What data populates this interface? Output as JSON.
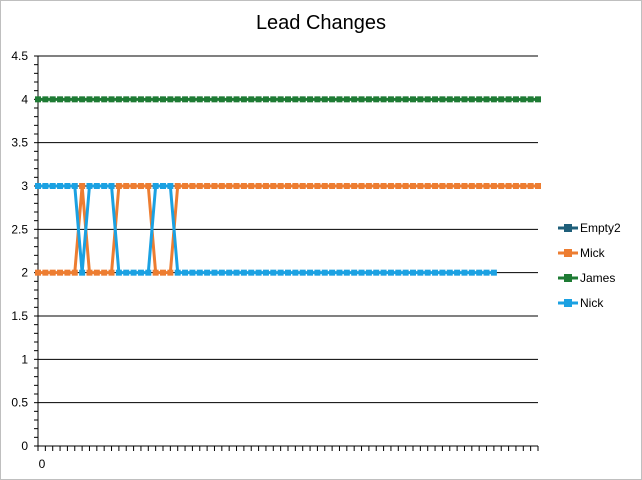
{
  "chart_data": {
    "type": "line",
    "title": "Lead Changes",
    "xlabel": "",
    "ylabel": "",
    "ylim": [
      0,
      4.5
    ],
    "yticks": [
      "0",
      "0.5",
      "1",
      "1.5",
      "2",
      "2.5",
      "3",
      "3.5",
      "4",
      "4.5"
    ],
    "xtick_labels": [
      "0"
    ],
    "x_count": 69,
    "grid": "horizontal",
    "legend_position": "right",
    "series": [
      {
        "name": "Empty2",
        "color": "#1f5f7a",
        "values": []
      },
      {
        "name": "Mick",
        "color": "#ed7d31",
        "values": [
          2,
          2,
          2,
          2,
          2,
          2,
          3,
          2,
          2,
          2,
          2,
          3,
          3,
          3,
          3,
          3,
          2,
          2,
          2,
          3,
          3,
          3,
          3,
          3,
          3,
          3,
          3,
          3,
          3,
          3,
          3,
          3,
          3,
          3,
          3,
          3,
          3,
          3,
          3,
          3,
          3,
          3,
          3,
          3,
          3,
          3,
          3,
          3,
          3,
          3,
          3,
          3,
          3,
          3,
          3,
          3,
          3,
          3,
          3,
          3,
          3,
          3,
          3,
          3,
          3,
          3,
          3,
          3,
          3
        ]
      },
      {
        "name": "James",
        "color": "#1e7b34",
        "values": [
          4,
          4,
          4,
          4,
          4,
          4,
          4,
          4,
          4,
          4,
          4,
          4,
          4,
          4,
          4,
          4,
          4,
          4,
          4,
          4,
          4,
          4,
          4,
          4,
          4,
          4,
          4,
          4,
          4,
          4,
          4,
          4,
          4,
          4,
          4,
          4,
          4,
          4,
          4,
          4,
          4,
          4,
          4,
          4,
          4,
          4,
          4,
          4,
          4,
          4,
          4,
          4,
          4,
          4,
          4,
          4,
          4,
          4,
          4,
          4,
          4,
          4,
          4,
          4,
          4,
          4,
          4,
          4,
          4
        ]
      },
      {
        "name": "Nick",
        "color": "#1ba1e2",
        "values": [
          3,
          3,
          3,
          3,
          3,
          3,
          2,
          3,
          3,
          3,
          3,
          2,
          2,
          2,
          2,
          2,
          3,
          3,
          3,
          2,
          2,
          2,
          2,
          2,
          2,
          2,
          2,
          2,
          2,
          2,
          2,
          2,
          2,
          2,
          2,
          2,
          2,
          2,
          2,
          2,
          2,
          2,
          2,
          2,
          2,
          2,
          2,
          2,
          2,
          2,
          2,
          2,
          2,
          2,
          2,
          2,
          2,
          2,
          2,
          2,
          2,
          2,
          2
        ]
      }
    ]
  }
}
